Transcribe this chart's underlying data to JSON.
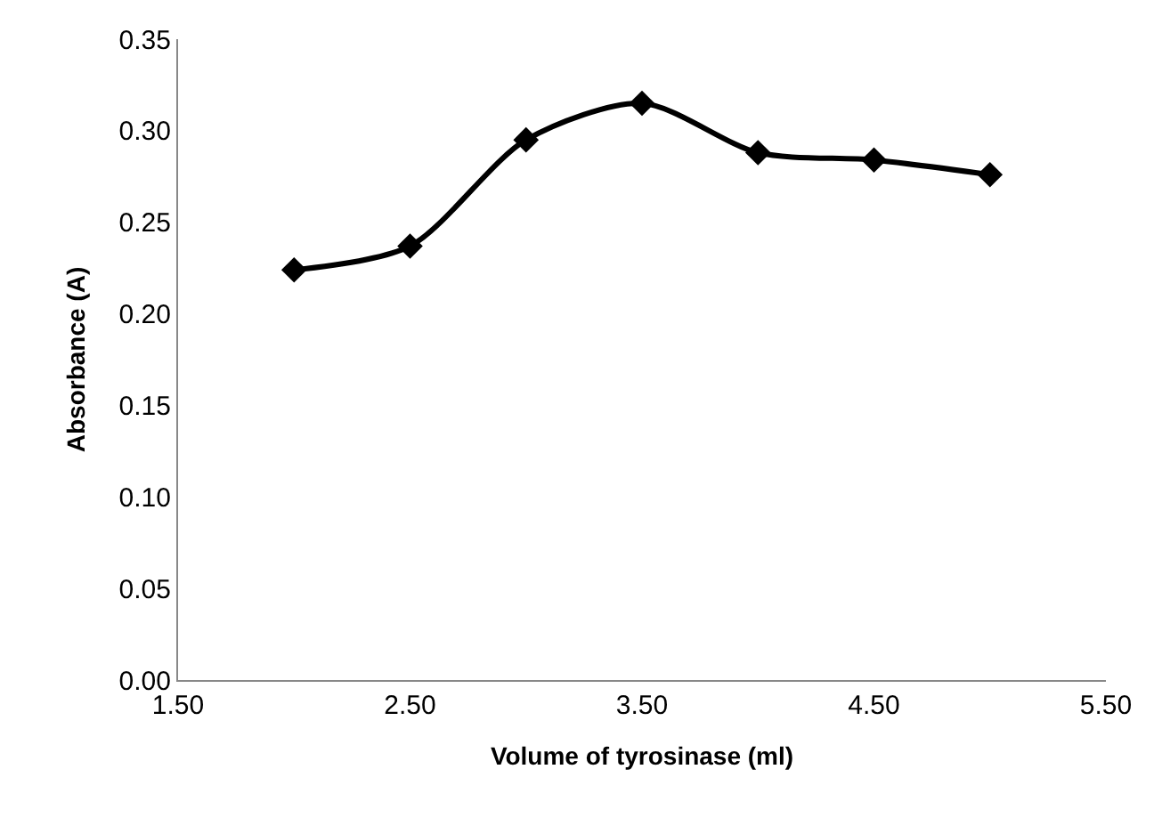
{
  "chart_data": {
    "type": "line",
    "xlabel": "Volume of tyrosinase (ml)",
    "ylabel": "Absorbance (A)",
    "x": [
      2.0,
      2.5,
      3.0,
      3.5,
      4.0,
      4.5,
      5.0
    ],
    "series": [
      {
        "color": "#000000",
        "values": [
          0.224,
          0.237,
          0.295,
          0.315,
          0.288,
          0.284,
          0.276
        ]
      }
    ],
    "xlim": [
      1.5,
      5.5
    ],
    "xticks": [
      {
        "value": 1.5,
        "label": "1.50"
      },
      {
        "value": 2.5,
        "label": "2.50"
      },
      {
        "value": 3.5,
        "label": "3.50"
      },
      {
        "value": 4.5,
        "label": "4.50"
      },
      {
        "value": 5.5,
        "label": "5.50"
      }
    ],
    "ylim": [
      0,
      0.35
    ],
    "yticks": [
      {
        "value": 0,
        "label": "0.00"
      },
      {
        "value": 0.05,
        "label": "0.05"
      },
      {
        "value": 0.1,
        "label": "0.10"
      },
      {
        "value": 0.15,
        "label": "0.15"
      },
      {
        "value": 0.2,
        "label": "0.20"
      },
      {
        "value": 0.25,
        "label": "0.25"
      },
      {
        "value": 0.3,
        "label": "0.30"
      },
      {
        "value": 0.35,
        "label": "0.35"
      }
    ],
    "marker": "diamond",
    "line_style": "solid"
  }
}
